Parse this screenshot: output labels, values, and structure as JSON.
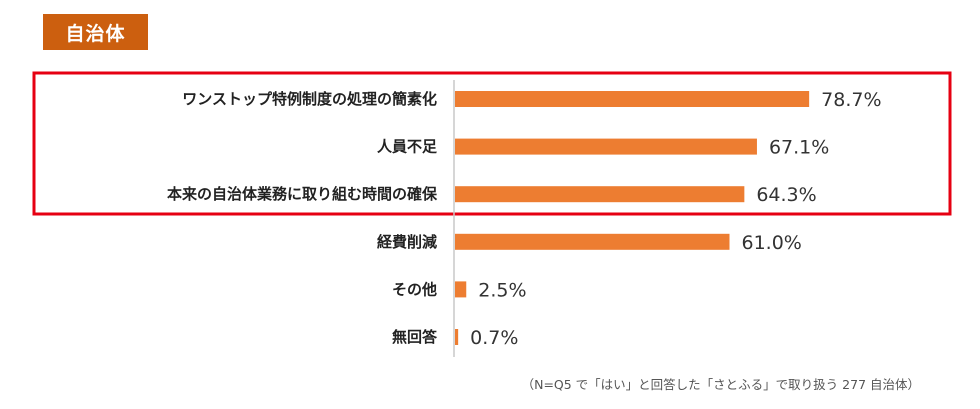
{
  "header": {
    "title": "自治体"
  },
  "chart_data": {
    "type": "bar",
    "orientation": "horizontal",
    "categories": [
      "ワンストップ特例制度の処理の簡素化",
      "人員不足",
      "本来の自治体業務に取り組む時間の確保",
      "経費削減",
      "その他",
      "無回答"
    ],
    "values": [
      78.7,
      67.1,
      64.3,
      61.0,
      2.5,
      0.7
    ],
    "value_labels": [
      "78.7%",
      "67.1%",
      "64.3%",
      "61.0%",
      "2.5%",
      "0.7%"
    ],
    "xlim": [
      0,
      100
    ],
    "grid": false,
    "bar_color": "#ed7d31",
    "highlight": {
      "color": "#e60012",
      "categories": [
        0,
        1,
        2
      ]
    }
  },
  "footnote": "（N=Q5 で「はい」と回答した「さとふる」で取り扱う 277 自治体）"
}
